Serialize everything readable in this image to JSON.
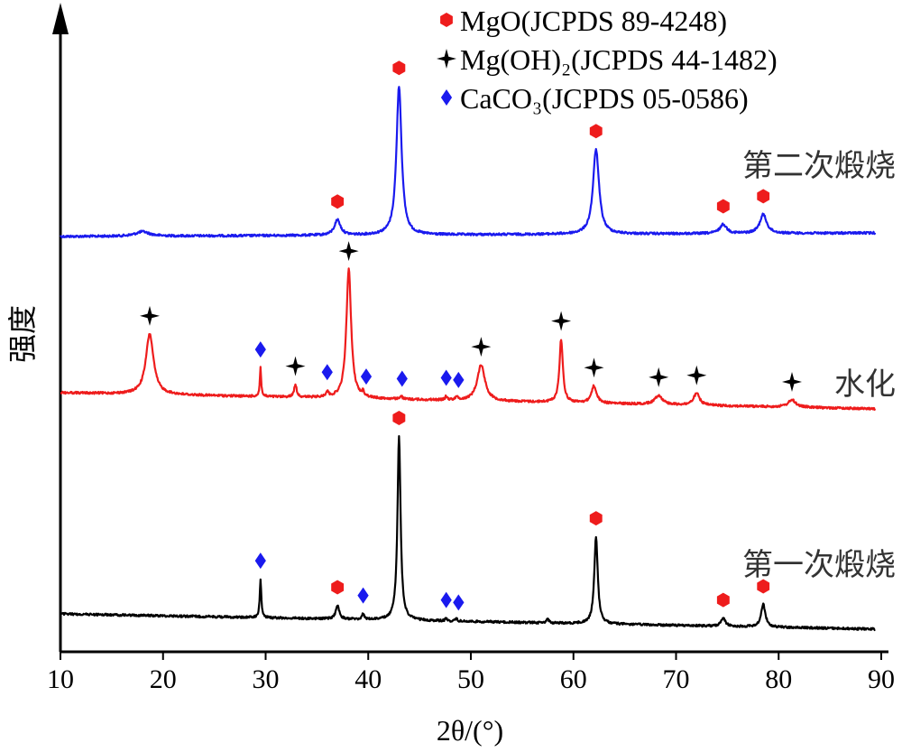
{
  "chart_data": {
    "type": "line",
    "title": "",
    "xlabel": "2θ/(°)",
    "ylabel": "强度",
    "xlim": [
      10,
      90
    ],
    "x_ticks": [
      "10",
      "20",
      "30",
      "40",
      "50",
      "60",
      "70",
      "80",
      "90"
    ],
    "y_ticks": "none",
    "grid": false,
    "legend_position": "top-right",
    "legend": [
      {
        "label": "MgO(JCPDS 89-4248)",
        "marker": "hexagon",
        "color": "#ee1c1c"
      },
      {
        "label": "Mg(OH)₂(JCPDS 44-1482)",
        "marker": "star4",
        "color": "#000000"
      },
      {
        "label": "CaCO₃(JCPDS 05-0586)",
        "marker": "diamond",
        "color": "#1a1aee"
      }
    ],
    "series": [
      {
        "name": "第二次煅烧",
        "color": "#1a1aee",
        "baseline_start": 262,
        "baseline_end": 258,
        "peaks": [
          {
            "x": 18.0,
            "h": 5,
            "w": 0.8
          },
          {
            "x": 37.0,
            "h": 17,
            "w": 0.35
          },
          {
            "x": 43.0,
            "h": 165,
            "w": 0.3
          },
          {
            "x": 62.2,
            "h": 94,
            "w": 0.35
          },
          {
            "x": 74.6,
            "h": 10,
            "w": 0.4
          },
          {
            "x": 78.5,
            "h": 21,
            "w": 0.4
          }
        ],
        "markers": [
          {
            "x": 37.0,
            "symbol": "hexagon"
          },
          {
            "x": 43.0,
            "symbol": "hexagon"
          },
          {
            "x": 62.2,
            "symbol": "hexagon"
          },
          {
            "x": 74.6,
            "symbol": "hexagon"
          },
          {
            "x": 78.5,
            "symbol": "hexagon"
          }
        ]
      },
      {
        "name": "水化",
        "color": "#ee1c1c",
        "baseline_start": 435,
        "baseline_end": 453,
        "peaks": [
          {
            "x": 18.7,
            "h": 67,
            "w": 0.45
          },
          {
            "x": 29.5,
            "h": 32,
            "w": 0.08
          },
          {
            "x": 32.9,
            "h": 14,
            "w": 0.15
          },
          {
            "x": 36.0,
            "h": 6,
            "w": 0.15
          },
          {
            "x": 38.1,
            "h": 143,
            "w": 0.28
          },
          {
            "x": 39.5,
            "h": 5,
            "w": 0.12
          },
          {
            "x": 43.2,
            "h": 4,
            "w": 0.12
          },
          {
            "x": 47.6,
            "h": 4,
            "w": 0.12
          },
          {
            "x": 48.6,
            "h": 4,
            "w": 0.12
          },
          {
            "x": 51.0,
            "h": 40,
            "w": 0.45
          },
          {
            "x": 58.8,
            "h": 70,
            "w": 0.2
          },
          {
            "x": 62.0,
            "h": 19,
            "w": 0.3
          },
          {
            "x": 68.3,
            "h": 10,
            "w": 0.45
          },
          {
            "x": 72.0,
            "h": 13,
            "w": 0.35
          },
          {
            "x": 81.3,
            "h": 8,
            "w": 0.45
          }
        ],
        "markers": [
          {
            "x": 18.7,
            "symbol": "star4"
          },
          {
            "x": 29.5,
            "symbol": "diamond"
          },
          {
            "x": 32.9,
            "symbol": "star4"
          },
          {
            "x": 36.0,
            "symbol": "diamond"
          },
          {
            "x": 38.1,
            "symbol": "star4"
          },
          {
            "x": 39.8,
            "symbol": "diamond"
          },
          {
            "x": 43.3,
            "symbol": "diamond"
          },
          {
            "x": 47.6,
            "symbol": "diamond"
          },
          {
            "x": 48.8,
            "symbol": "diamond"
          },
          {
            "x": 51.0,
            "symbol": "star4"
          },
          {
            "x": 58.8,
            "symbol": "star4"
          },
          {
            "x": 62.0,
            "symbol": "star4"
          },
          {
            "x": 68.3,
            "symbol": "star4"
          },
          {
            "x": 72.0,
            "symbol": "star4"
          },
          {
            "x": 81.3,
            "symbol": "star4"
          }
        ]
      },
      {
        "name": "第一次煅烧",
        "color": "#000000",
        "baseline_start": 680,
        "baseline_end": 697,
        "peaks": [
          {
            "x": 29.5,
            "h": 43,
            "w": 0.09
          },
          {
            "x": 37.0,
            "h": 15,
            "w": 0.2
          },
          {
            "x": 39.5,
            "h": 6,
            "w": 0.12
          },
          {
            "x": 43.0,
            "h": 204,
            "w": 0.18
          },
          {
            "x": 47.6,
            "h": 3,
            "w": 0.1
          },
          {
            "x": 48.6,
            "h": 3,
            "w": 0.1
          },
          {
            "x": 57.5,
            "h": 4,
            "w": 0.15
          },
          {
            "x": 62.2,
            "h": 97,
            "w": 0.2
          },
          {
            "x": 74.6,
            "h": 9,
            "w": 0.25
          },
          {
            "x": 78.5,
            "h": 25,
            "w": 0.25
          }
        ],
        "markers": [
          {
            "x": 29.5,
            "symbol": "diamond"
          },
          {
            "x": 37.0,
            "symbol": "hexagon"
          },
          {
            "x": 39.5,
            "symbol": "diamond"
          },
          {
            "x": 43.0,
            "symbol": "hexagon"
          },
          {
            "x": 47.6,
            "symbol": "diamond"
          },
          {
            "x": 48.8,
            "symbol": "diamond"
          },
          {
            "x": 62.2,
            "symbol": "hexagon"
          },
          {
            "x": 74.6,
            "symbol": "hexagon"
          },
          {
            "x": 78.5,
            "symbol": "hexagon"
          }
        ]
      }
    ]
  }
}
